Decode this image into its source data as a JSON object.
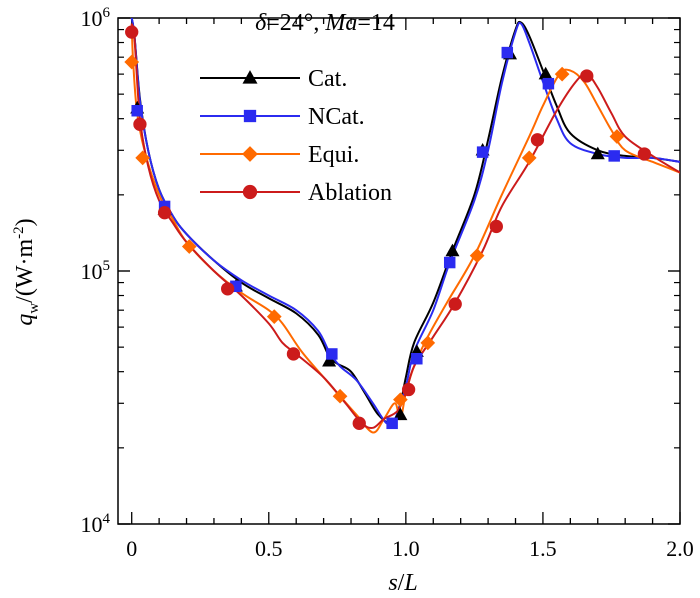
{
  "chart_data": {
    "type": "line",
    "title_parts": [
      {
        "text": "δ",
        "italic": true
      },
      {
        "text": "=24°, ",
        "italic": false
      },
      {
        "text": "Ma",
        "italic": true
      },
      {
        "text": "=14",
        "italic": false
      }
    ],
    "xlabel": "s/L",
    "ylabel": "q_w/(W·m^-2)",
    "ylabel_main": "q",
    "ylabel_sub": "w",
    "ylabel_rest": "/(W·m",
    "ylabel_sup": "-2",
    "ylabel_close": ")",
    "xlim": [
      -0.05,
      2.0
    ],
    "ylim": [
      10000,
      1000000
    ],
    "yscale": "log",
    "x_ticks": [
      0,
      0.5,
      1.0,
      1.5,
      2.0
    ],
    "x_tick_labels": [
      "0",
      "0.5",
      "1.0",
      "1.5",
      "2.0"
    ],
    "y_ticks": [
      10000,
      100000,
      1000000
    ],
    "y_tick_base": "10",
    "y_tick_exponents": [
      "4",
      "5",
      "6"
    ],
    "legend_position": "upper-left",
    "series": [
      {
        "name": "Cat.",
        "color": "#000000",
        "marker": "triangle",
        "line": [
          [
            0.0,
            1000000
          ],
          [
            0.01,
            850000
          ],
          [
            0.03,
            480000
          ],
          [
            0.06,
            300000
          ],
          [
            0.1,
            210000
          ],
          [
            0.15,
            165000
          ],
          [
            0.2,
            140000
          ],
          [
            0.3,
            110000
          ],
          [
            0.4,
            90000
          ],
          [
            0.5,
            78000
          ],
          [
            0.6,
            68000
          ],
          [
            0.68,
            56000
          ],
          [
            0.72,
            46000
          ],
          [
            0.75,
            43000
          ],
          [
            0.8,
            40000
          ],
          [
            0.85,
            33000
          ],
          [
            0.9,
            27000
          ],
          [
            0.95,
            25000
          ],
          [
            0.98,
            30000
          ],
          [
            1.0,
            38000
          ],
          [
            1.03,
            52000
          ],
          [
            1.1,
            75000
          ],
          [
            1.17,
            120000
          ],
          [
            1.25,
            200000
          ],
          [
            1.3,
            330000
          ],
          [
            1.35,
            580000
          ],
          [
            1.4,
            900000
          ],
          [
            1.42,
            960000
          ],
          [
            1.45,
            850000
          ],
          [
            1.5,
            620000
          ],
          [
            1.55,
            450000
          ],
          [
            1.6,
            350000
          ],
          [
            1.7,
            300000
          ],
          [
            1.8,
            285000
          ],
          [
            1.9,
            280000
          ],
          [
            2.0,
            270000
          ]
        ],
        "markers": [
          [
            0.02,
            440000
          ],
          [
            0.12,
            175000
          ],
          [
            0.38,
            87000
          ],
          [
            0.72,
            44000
          ],
          [
            0.98,
            27000
          ],
          [
            1.04,
            48000
          ],
          [
            1.17,
            120000
          ],
          [
            1.28,
            300000
          ],
          [
            1.38,
            720000
          ],
          [
            1.51,
            600000
          ],
          [
            1.7,
            290000
          ]
        ]
      },
      {
        "name": "NCat.",
        "color": "#2b2bf0",
        "marker": "square",
        "line": [
          [
            0.0,
            1000000
          ],
          [
            0.01,
            850000
          ],
          [
            0.03,
            470000
          ],
          [
            0.06,
            300000
          ],
          [
            0.1,
            210000
          ],
          [
            0.15,
            165000
          ],
          [
            0.2,
            140000
          ],
          [
            0.3,
            110000
          ],
          [
            0.4,
            92000
          ],
          [
            0.5,
            80000
          ],
          [
            0.6,
            70000
          ],
          [
            0.68,
            58000
          ],
          [
            0.72,
            48000
          ],
          [
            0.76,
            42000
          ],
          [
            0.82,
            37000
          ],
          [
            0.88,
            30000
          ],
          [
            0.93,
            25000
          ],
          [
            0.96,
            26000
          ],
          [
            1.0,
            35000
          ],
          [
            1.03,
            48000
          ],
          [
            1.1,
            70000
          ],
          [
            1.16,
            108000
          ],
          [
            1.25,
            190000
          ],
          [
            1.3,
            300000
          ],
          [
            1.35,
            550000
          ],
          [
            1.4,
            880000
          ],
          [
            1.42,
            950000
          ],
          [
            1.45,
            800000
          ],
          [
            1.5,
            560000
          ],
          [
            1.55,
            400000
          ],
          [
            1.6,
            320000
          ],
          [
            1.7,
            290000
          ],
          [
            1.8,
            280000
          ],
          [
            1.9,
            280000
          ],
          [
            2.0,
            270000
          ]
        ],
        "markers": [
          [
            0.02,
            430000
          ],
          [
            0.12,
            180000
          ],
          [
            0.38,
            87000
          ],
          [
            0.73,
            47000
          ],
          [
            0.95,
            25000
          ],
          [
            1.04,
            45000
          ],
          [
            1.16,
            108000
          ],
          [
            1.28,
            295000
          ],
          [
            1.37,
            730000
          ],
          [
            1.52,
            550000
          ],
          [
            1.76,
            285000
          ]
        ]
      },
      {
        "name": "Equi.",
        "color": "#ff6a00",
        "marker": "diamond",
        "line": [
          [
            0.0,
            950000
          ],
          [
            0.005,
            680000
          ],
          [
            0.02,
            420000
          ],
          [
            0.05,
            290000
          ],
          [
            0.1,
            200000
          ],
          [
            0.15,
            160000
          ],
          [
            0.2,
            130000
          ],
          [
            0.3,
            100000
          ],
          [
            0.4,
            82000
          ],
          [
            0.5,
            70000
          ],
          [
            0.55,
            62000
          ],
          [
            0.62,
            48000
          ],
          [
            0.7,
            38000
          ],
          [
            0.76,
            32000
          ],
          [
            0.82,
            27000
          ],
          [
            0.88,
            23000
          ],
          [
            0.92,
            26000
          ],
          [
            0.96,
            30000
          ],
          [
            0.98,
            26000
          ],
          [
            1.0,
            33000
          ],
          [
            1.03,
            42000
          ],
          [
            1.08,
            55000
          ],
          [
            1.15,
            75000
          ],
          [
            1.25,
            115000
          ],
          [
            1.35,
            200000
          ],
          [
            1.45,
            340000
          ],
          [
            1.5,
            450000
          ],
          [
            1.56,
            600000
          ],
          [
            1.6,
            620000
          ],
          [
            1.65,
            560000
          ],
          [
            1.7,
            450000
          ],
          [
            1.75,
            360000
          ],
          [
            1.8,
            300000
          ],
          [
            1.9,
            270000
          ],
          [
            2.0,
            245000
          ]
        ],
        "markers": [
          [
            0.0,
            670000
          ],
          [
            0.04,
            280000
          ],
          [
            0.21,
            125000
          ],
          [
            0.52,
            66000
          ],
          [
            0.76,
            32000
          ],
          [
            0.98,
            31000
          ],
          [
            1.08,
            52000
          ],
          [
            1.26,
            115000
          ],
          [
            1.45,
            280000
          ],
          [
            1.57,
            600000
          ],
          [
            1.77,
            340000
          ]
        ]
      },
      {
        "name": "Ablation",
        "color": "#cc1b1b",
        "marker": "circle",
        "line": [
          [
            0.0,
            950000
          ],
          [
            0.01,
            830000
          ],
          [
            0.03,
            400000
          ],
          [
            0.06,
            260000
          ],
          [
            0.1,
            190000
          ],
          [
            0.15,
            155000
          ],
          [
            0.2,
            130000
          ],
          [
            0.3,
            100000
          ],
          [
            0.4,
            80000
          ],
          [
            0.5,
            62000
          ],
          [
            0.55,
            52000
          ],
          [
            0.6,
            47000
          ],
          [
            0.7,
            38000
          ],
          [
            0.78,
            30000
          ],
          [
            0.84,
            25000
          ],
          [
            0.88,
            24000
          ],
          [
            0.92,
            26000
          ],
          [
            0.97,
            28000
          ],
          [
            1.0,
            33000
          ],
          [
            1.03,
            42000
          ],
          [
            1.1,
            55000
          ],
          [
            1.18,
            75000
          ],
          [
            1.28,
            120000
          ],
          [
            1.35,
            180000
          ],
          [
            1.45,
            270000
          ],
          [
            1.55,
            430000
          ],
          [
            1.62,
            560000
          ],
          [
            1.66,
            600000
          ],
          [
            1.7,
            530000
          ],
          [
            1.75,
            420000
          ],
          [
            1.8,
            340000
          ],
          [
            1.9,
            285000
          ],
          [
            2.0,
            245000
          ]
        ],
        "markers": [
          [
            0.0,
            880000
          ],
          [
            0.03,
            380000
          ],
          [
            0.12,
            170000
          ],
          [
            0.35,
            85000
          ],
          [
            0.59,
            47000
          ],
          [
            0.83,
            25000
          ],
          [
            1.01,
            34000
          ],
          [
            1.18,
            74000
          ],
          [
            1.33,
            150000
          ],
          [
            1.48,
            330000
          ],
          [
            1.66,
            590000
          ],
          [
            1.87,
            290000
          ]
        ]
      }
    ]
  }
}
